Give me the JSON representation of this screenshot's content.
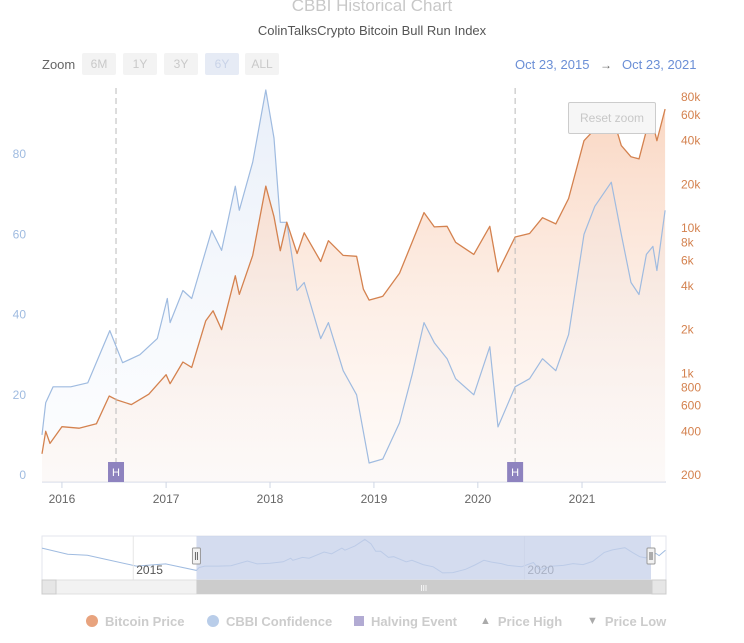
{
  "header": {
    "title": "CBBI Historical Chart",
    "subtitle": "ColinTalksCrypto Bitcoin Bull Run Index"
  },
  "zoom": {
    "label": "Zoom",
    "buttons": [
      "6M",
      "1Y",
      "3Y",
      "6Y",
      "ALL"
    ],
    "active": "6Y"
  },
  "range": {
    "from": "Oct 23, 2015",
    "arrow": "→",
    "to": "Oct 23, 2021"
  },
  "reset_zoom_label": "Reset zoom",
  "colors": {
    "price": "#d4824f",
    "confidence": "#9fbbe0",
    "halving": "#8e83bf",
    "navigator_mask": "#c5d0ea"
  },
  "chart_data": {
    "type": "line",
    "x_axis": {
      "type": "date",
      "range": [
        "2015-10-23",
        "2021-10-23"
      ],
      "tick_labels": [
        "2016",
        "2017",
        "2018",
        "2019",
        "2020",
        "2021"
      ]
    },
    "y_axis_left": {
      "label": "",
      "range": [
        0,
        95
      ],
      "tick_labels": [
        "0",
        "20",
        "40",
        "60",
        "80"
      ]
    },
    "y_axis_right": {
      "label": "",
      "scale": "log",
      "range": [
        200,
        80000
      ],
      "tick_labels": [
        "200",
        "400",
        "600",
        "800",
        "1k",
        "2k",
        "4k",
        "6k",
        "8k",
        "10k",
        "20k",
        "40k",
        "60k",
        "80k"
      ]
    },
    "grid": false,
    "legend_position": "bottom",
    "series": [
      {
        "name": "Bitcoin Price",
        "axis": "right",
        "points": [
          [
            "2015-10-23",
            280
          ],
          [
            "2015-11-05",
            400
          ],
          [
            "2015-11-20",
            330
          ],
          [
            "2016-01-01",
            430
          ],
          [
            "2016-03-01",
            420
          ],
          [
            "2016-05-01",
            450
          ],
          [
            "2016-06-15",
            700
          ],
          [
            "2016-07-10",
            660
          ],
          [
            "2016-09-01",
            610
          ],
          [
            "2016-11-01",
            720
          ],
          [
            "2017-01-01",
            980
          ],
          [
            "2017-01-15",
            850
          ],
          [
            "2017-03-01",
            1200
          ],
          [
            "2017-04-01",
            1100
          ],
          [
            "2017-05-20",
            2300
          ],
          [
            "2017-06-15",
            2700
          ],
          [
            "2017-07-15",
            2000
          ],
          [
            "2017-09-01",
            4700
          ],
          [
            "2017-09-15",
            3500
          ],
          [
            "2017-11-01",
            6500
          ],
          [
            "2017-12-17",
            19500
          ],
          [
            "2018-01-15",
            12000
          ],
          [
            "2018-02-06",
            7000
          ],
          [
            "2018-03-01",
            11000
          ],
          [
            "2018-04-06",
            6700
          ],
          [
            "2018-05-01",
            9300
          ],
          [
            "2018-06-28",
            5900
          ],
          [
            "2018-07-25",
            8200
          ],
          [
            "2018-09-15",
            6500
          ],
          [
            "2018-11-01",
            6400
          ],
          [
            "2018-11-25",
            3800
          ],
          [
            "2018-12-15",
            3200
          ],
          [
            "2019-02-01",
            3400
          ],
          [
            "2019-04-01",
            4900
          ],
          [
            "2019-05-15",
            8000
          ],
          [
            "2019-06-26",
            12800
          ],
          [
            "2019-08-01",
            10200
          ],
          [
            "2019-09-15",
            10300
          ],
          [
            "2019-10-15",
            8000
          ],
          [
            "2019-12-18",
            6600
          ],
          [
            "2020-02-12",
            10300
          ],
          [
            "2020-03-12",
            5000
          ],
          [
            "2020-05-11",
            8700
          ],
          [
            "2020-07-01",
            9200
          ],
          [
            "2020-08-15",
            11800
          ],
          [
            "2020-10-01",
            10700
          ],
          [
            "2020-11-15",
            16000
          ],
          [
            "2021-01-08",
            40000
          ],
          [
            "2021-02-15",
            48000
          ],
          [
            "2021-04-14",
            63000
          ],
          [
            "2021-05-19",
            37000
          ],
          [
            "2021-06-22",
            31000
          ],
          [
            "2021-07-20",
            30000
          ],
          [
            "2021-08-15",
            47000
          ],
          [
            "2021-09-07",
            52000
          ],
          [
            "2021-09-21",
            40000
          ],
          [
            "2021-10-20",
            66000
          ]
        ]
      },
      {
        "name": "CBBI Confidence",
        "axis": "left",
        "points": [
          [
            "2015-10-23",
            10
          ],
          [
            "2015-11-05",
            18
          ],
          [
            "2015-12-01",
            22
          ],
          [
            "2016-02-01",
            22
          ],
          [
            "2016-04-01",
            23
          ],
          [
            "2016-06-17",
            36
          ],
          [
            "2016-08-01",
            28
          ],
          [
            "2016-10-01",
            30
          ],
          [
            "2016-12-01",
            34
          ],
          [
            "2017-01-05",
            44
          ],
          [
            "2017-01-15",
            38
          ],
          [
            "2017-03-01",
            46
          ],
          [
            "2017-04-01",
            44
          ],
          [
            "2017-06-10",
            61
          ],
          [
            "2017-07-15",
            56
          ],
          [
            "2017-09-01",
            72
          ],
          [
            "2017-09-15",
            66
          ],
          [
            "2017-11-01",
            78
          ],
          [
            "2017-12-17",
            96
          ],
          [
            "2018-01-15",
            84
          ],
          [
            "2018-02-06",
            63
          ],
          [
            "2018-03-01",
            63
          ],
          [
            "2018-04-06",
            46
          ],
          [
            "2018-05-01",
            48
          ],
          [
            "2018-06-28",
            34
          ],
          [
            "2018-07-25",
            38
          ],
          [
            "2018-09-15",
            26
          ],
          [
            "2018-11-01",
            20
          ],
          [
            "2018-12-15",
            3
          ],
          [
            "2019-02-01",
            4
          ],
          [
            "2019-04-01",
            13
          ],
          [
            "2019-05-15",
            25
          ],
          [
            "2019-06-26",
            38
          ],
          [
            "2019-08-01",
            33
          ],
          [
            "2019-09-15",
            29
          ],
          [
            "2019-10-15",
            24
          ],
          [
            "2019-12-18",
            20
          ],
          [
            "2020-02-12",
            32
          ],
          [
            "2020-03-12",
            12
          ],
          [
            "2020-05-11",
            22
          ],
          [
            "2020-07-01",
            24
          ],
          [
            "2020-08-15",
            29
          ],
          [
            "2020-10-01",
            26
          ],
          [
            "2020-11-15",
            35
          ],
          [
            "2021-01-08",
            60
          ],
          [
            "2021-02-15",
            67
          ],
          [
            "2021-04-14",
            73
          ],
          [
            "2021-05-19",
            60
          ],
          [
            "2021-06-22",
            48
          ],
          [
            "2021-07-20",
            45
          ],
          [
            "2021-08-15",
            55
          ],
          [
            "2021-09-07",
            57
          ],
          [
            "2021-09-21",
            51
          ],
          [
            "2021-10-20",
            66
          ]
        ]
      }
    ],
    "halving_events": [
      {
        "date": "2016-07-09",
        "label": "H"
      },
      {
        "date": "2020-05-11",
        "label": "H"
      }
    ]
  },
  "navigator": {
    "labels": [
      "2015",
      "2020"
    ],
    "scrollbar_grip": "III"
  },
  "legend": [
    {
      "label": "Bitcoin Price",
      "symbol": "dot",
      "color": "#e8a37e"
    },
    {
      "label": "CBBI Confidence",
      "symbol": "dot",
      "color": "#b9cde9"
    },
    {
      "label": "Halving Event",
      "symbol": "square",
      "color": "#b2abd3"
    },
    {
      "label": "Price High",
      "symbol": "▲",
      "color": "#aaaaaa"
    },
    {
      "label": "Price Low",
      "symbol": "▼",
      "color": "#aaaaaa"
    }
  ]
}
